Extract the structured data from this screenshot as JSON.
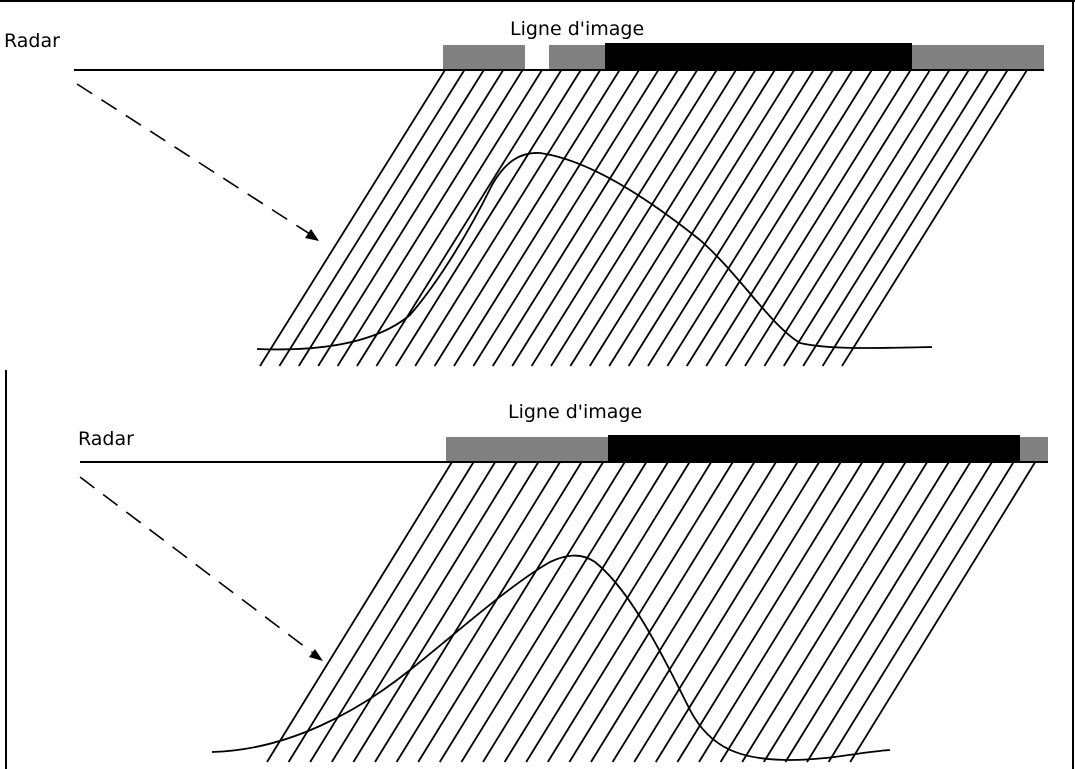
{
  "panels": [
    {
      "radar_label": "Radar",
      "image_line_label": "Ligne d'image"
    },
    {
      "radar_label": "Radar",
      "image_line_label": "Ligne d'image"
    }
  ],
  "colors": {
    "frame": "#000000",
    "lines": "#000000",
    "layover_band": "#000000",
    "foreshortening_band": "#808080",
    "background": "#ffffff"
  }
}
